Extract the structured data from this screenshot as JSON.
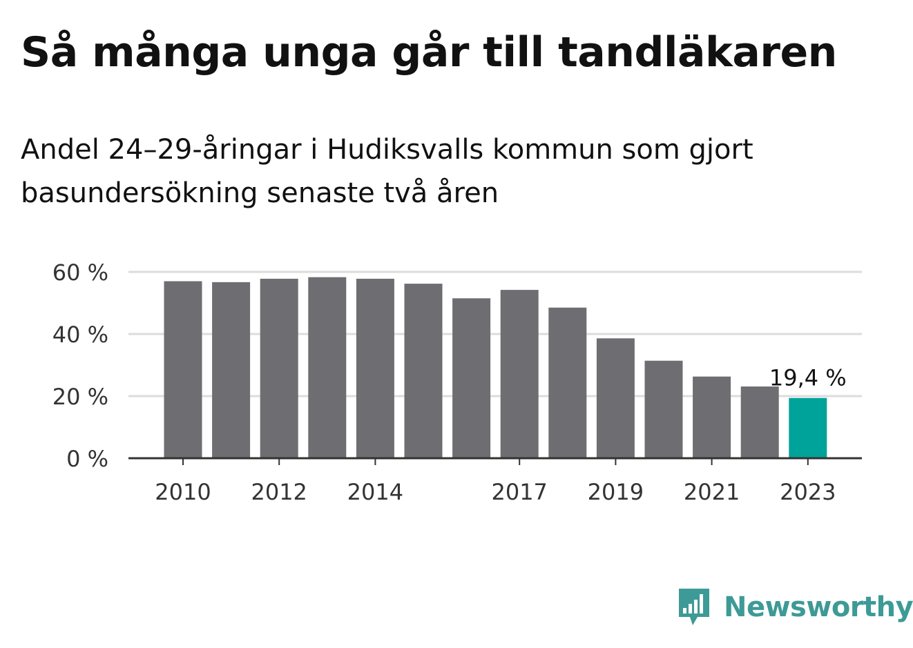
{
  "chart_data": {
    "type": "bar",
    "title": "Så många unga går till tandläkaren",
    "subtitle": "Andel 24–29-åringar i Hudiksvalls kommun som gjort basundersökning senaste två åren",
    "categories": [
      "2010",
      "2011",
      "2012",
      "2013",
      "2014",
      "2015",
      "2016",
      "2017",
      "2018",
      "2019",
      "2020",
      "2021",
      "2022",
      "2023"
    ],
    "values": [
      57.0,
      56.7,
      57.8,
      58.3,
      57.8,
      56.2,
      51.5,
      54.2,
      48.5,
      38.6,
      31.4,
      26.3,
      23.1,
      19.4
    ],
    "xlabel": "",
    "ylabel": "",
    "ylim": [
      0,
      60
    ],
    "y_ticks": [
      0,
      20,
      40,
      60
    ],
    "y_tick_labels": [
      "0 %",
      "20 %",
      "40 %",
      "60 %"
    ],
    "x_tick_labels": [
      "2010",
      "2012",
      "2014",
      "2017",
      "2019",
      "2021",
      "2023"
    ],
    "grid": true,
    "highlight_index": 13,
    "annotation": {
      "category": "2023",
      "text": "19,4 %"
    },
    "colors": {
      "bar": "#6e6d72",
      "highlight": "#00a39a",
      "grid": "#dcdcdc",
      "axis": "#333333",
      "tick_text": "#333333"
    }
  },
  "brand": {
    "name": "Newsworthy",
    "icon": "newsworthy-logo-icon",
    "color": "#3d9a96"
  }
}
